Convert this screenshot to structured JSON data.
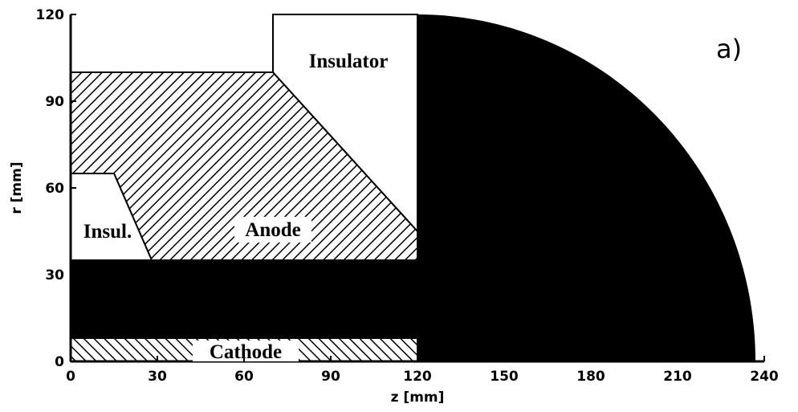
{
  "panel_label": "a)",
  "axes": {
    "xlabel": "z [mm]",
    "ylabel": "r [mm]",
    "xlim": [
      0,
      240
    ],
    "ylim": [
      0,
      120
    ],
    "xticks": [
      0,
      30,
      60,
      90,
      120,
      150,
      180,
      210,
      240
    ],
    "yticks": [
      0,
      30,
      60,
      90,
      120
    ]
  },
  "regions": {
    "insulator": "Insulator",
    "insul": "Insul.",
    "anode": "Anode",
    "cathode": "Cathode"
  }
}
